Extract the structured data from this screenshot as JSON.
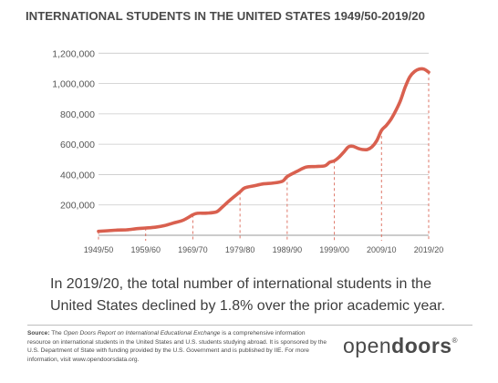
{
  "chart_data": {
    "type": "line",
    "title": "INTERNATIONAL STUDENTS IN THE UNITED STATES 1949/50-2019/20",
    "xlabel": "",
    "ylabel": "",
    "x_range": [
      1949,
      2019
    ],
    "ylim": [
      0,
      1250000
    ],
    "y_ticks": [
      200000,
      400000,
      600000,
      800000,
      1000000,
      1200000
    ],
    "y_tick_labels": [
      "200,000",
      "400,000",
      "600,000",
      "800,000",
      "1,000,000",
      "1,200,000"
    ],
    "x_ticks": [
      1949,
      1959,
      1969,
      1979,
      1989,
      1999,
      2009,
      2019
    ],
    "x_tick_labels": [
      "1949/50",
      "1959/60",
      "1969/70",
      "1979/80",
      "1989/90",
      "1999/00",
      "2009/10",
      "2019/20"
    ],
    "grid": "horizontal",
    "line_color": "#d9604f",
    "series": [
      {
        "x": [
          1949,
          1951,
          1953,
          1955,
          1957,
          1959,
          1961,
          1963,
          1965,
          1967,
          1969,
          1970,
          1972,
          1974,
          1975,
          1977,
          1979,
          1980,
          1982,
          1984,
          1986,
          1988,
          1989,
          1991,
          1993,
          1995,
          1997,
          1998,
          1999,
          2000,
          2001,
          2002,
          2003,
          2004,
          2005,
          2006,
          2007,
          2008,
          2009,
          2010,
          2011,
          2012,
          2013,
          2014,
          2015,
          2016,
          2017,
          2018,
          2019
        ],
        "values": [
          26000,
          30000,
          34000,
          36000,
          43000,
          48000,
          53000,
          64000,
          82000,
          100000,
          135000,
          145000,
          146000,
          154000,
          179000,
          235000,
          286000,
          312000,
          326000,
          339000,
          344000,
          356000,
          387000,
          420000,
          449000,
          453000,
          458000,
          481000,
          491000,
          515000,
          548000,
          583000,
          586000,
          573000,
          565000,
          565000,
          583000,
          624000,
          691000,
          723000,
          764000,
          820000,
          886000,
          975000,
          1044000,
          1079000,
          1095000,
          1095000,
          1075000
        ]
      }
    ]
  },
  "caption": "In 2019/20, the total number of international students in the United States declined by 1.8% over the prior academic year.",
  "source": {
    "label": "Source:",
    "pre": " The ",
    "report_name": "Open Doors Report on International Educational Exchange",
    "post": " is a comprehensive information resource on international students in the United States and U.S. students studying abroad. It is sponsored by the U.S. Department of State with funding provided by the U.S. Government and is published by IIE. For more information, visit www.opendoorsdata.org."
  },
  "logo": {
    "light": "open",
    "bold": "doors",
    "mark": "®"
  }
}
